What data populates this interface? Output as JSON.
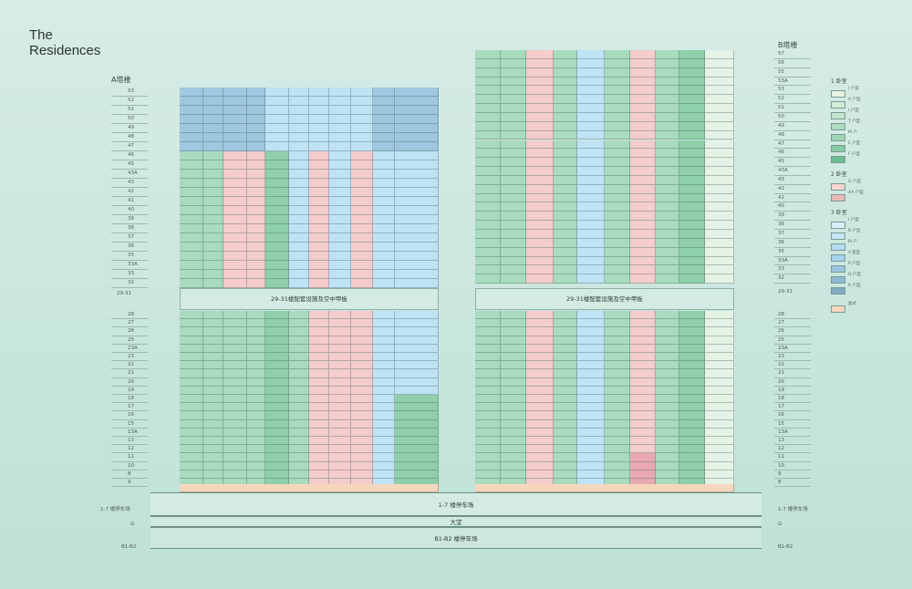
{
  "title": [
    "The",
    "Residences"
  ],
  "tower_a": {
    "label": "A塔楼",
    "upper_floors": [
      "53",
      "52",
      "51",
      "50",
      "49",
      "48",
      "47",
      "46",
      "45",
      "43A",
      "43",
      "42",
      "41",
      "40",
      "39",
      "38",
      "37",
      "36",
      "35",
      "33A",
      "33",
      "32"
    ],
    "lower_floors": [
      "28",
      "27",
      "26",
      "25",
      "23A",
      "23",
      "22",
      "21",
      "20",
      "19",
      "18",
      "17",
      "16",
      "15",
      "13A",
      "13",
      "12",
      "11",
      "10",
      "8",
      "9"
    ],
    "refuge_floor": "29-31",
    "refuge_label": "29-31楼配套设施及空中甲板"
  },
  "tower_b": {
    "label": "B塔楼",
    "upper_floors": [
      "57",
      "56",
      "55",
      "53A",
      "53",
      "52",
      "51",
      "50",
      "49",
      "48",
      "47",
      "46",
      "45",
      "43A",
      "43",
      "42",
      "41",
      "40",
      "39",
      "38",
      "37",
      "36",
      "35",
      "33A",
      "33",
      "32"
    ],
    "lower_floors": [
      "28",
      "27",
      "26",
      "25",
      "23A",
      "23",
      "22",
      "21",
      "20",
      "19",
      "18",
      "17",
      "16",
      "15",
      "13A",
      "13",
      "12",
      "11",
      "10",
      "9",
      "8"
    ],
    "refuge_floor": "29-31",
    "refuge_label": "29-31楼配套设施及空中甲板"
  },
  "podium": {
    "parking_upper": "1-7 楼停车场",
    "lobby": "大堂",
    "parking_lower": "B1-B2 楼停车场",
    "left_labels": [
      "1-7 楼停车场",
      "G",
      "B1-B2"
    ],
    "right_labels": [
      "1-7 楼停车场",
      "G",
      "B1-B2"
    ]
  },
  "legend": {
    "groups": [
      {
        "title": "1 卧室",
        "items": [
          "I 户型",
          "A 户型",
          "I 户型",
          "T 户型",
          "M 户",
          "E 户型",
          "F 户型"
        ],
        "colors": [
          "#e6f3e2",
          "#d4ecd6",
          "#c3e5cd",
          "#b0dcc1",
          "#9fd4b5",
          "#86c9a4",
          "#6dbd92"
        ]
      },
      {
        "title": "2 卧室",
        "items": [
          "G 户型",
          "AA 户型"
        ],
        "colors": [
          "#f6d4d3",
          "#e8b8b8"
        ]
      },
      {
        "title": "3 卧室",
        "items": [
          "I 户型",
          "B 户型",
          "M 户",
          "S 套型",
          "P 户型",
          "Q 户型",
          "R 户型"
        ],
        "colors": [
          "#d6eef8",
          "#c6e6f5",
          "#b5dcf0",
          "#a8d2ea",
          "#9cc5dd",
          "#8fb8cf",
          "#84aac0"
        ]
      },
      {
        "title": "",
        "items": [
          "复式"
        ],
        "colors": [
          "#f6d6bd"
        ]
      }
    ]
  },
  "colors": {
    "green": "#a9dbbf",
    "green_dark": "#8fcfa9",
    "pink": "#f4cccc",
    "blue": "#bfe3f5",
    "blue_dark": "#9fc7df",
    "peach": "#f6d6bd",
    "pale": "#e4f3e6"
  }
}
